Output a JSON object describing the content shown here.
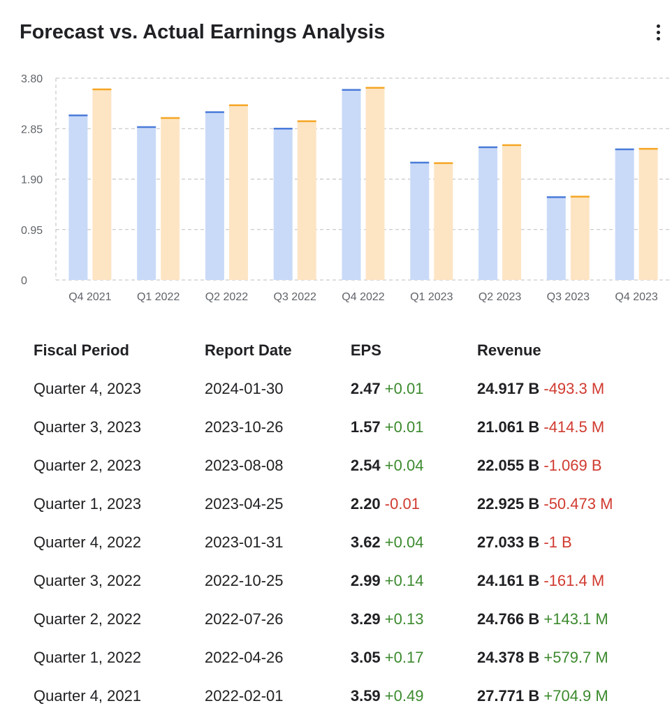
{
  "header": {
    "title": "Forecast vs. Actual Earnings Analysis",
    "menu_icon": "more-vert-icon"
  },
  "colors": {
    "forecast_fill": "#c9daf8",
    "forecast_line": "#4a7bd9",
    "actual_fill": "#fde5c4",
    "actual_line": "#f5a623",
    "grid": "#bdbdbd",
    "positive": "#3c8a2e",
    "negative": "#d03a2f"
  },
  "chart_data": {
    "type": "bar",
    "categories": [
      "Q4 2021",
      "Q1 2022",
      "Q2 2022",
      "Q3 2022",
      "Q4 2022",
      "Q1 2023",
      "Q2 2023",
      "Q3 2023",
      "Q4 2023"
    ],
    "series": [
      {
        "values": [
          3.1,
          2.88,
          3.16,
          2.85,
          3.58,
          2.21,
          2.5,
          1.56,
          2.46
        ]
      },
      {
        "values": [
          3.59,
          3.05,
          3.29,
          2.99,
          3.62,
          2.2,
          2.54,
          1.57,
          2.47
        ]
      }
    ],
    "yticks": [
      "0",
      "0.95",
      "1.90",
      "2.85",
      "3.80"
    ],
    "ylim": [
      0,
      3.8
    ],
    "grid": true
  },
  "table": {
    "headers": {
      "period": "Fiscal Period",
      "date": "Report Date",
      "eps": "EPS",
      "revenue": "Revenue"
    },
    "rows": [
      {
        "period": "Quarter 4, 2023",
        "date": "2024-01-30",
        "eps": "2.47",
        "eps_diff": "+0.01",
        "revenue": "24.917 B",
        "revenue_diff": "-493.3 M"
      },
      {
        "period": "Quarter 3, 2023",
        "date": "2023-10-26",
        "eps": "1.57",
        "eps_diff": "+0.01",
        "revenue": "21.061 B",
        "revenue_diff": "-414.5 M"
      },
      {
        "period": "Quarter 2, 2023",
        "date": "2023-08-08",
        "eps": "2.54",
        "eps_diff": "+0.04",
        "revenue": "22.055 B",
        "revenue_diff": "-1.069 B"
      },
      {
        "period": "Quarter 1, 2023",
        "date": "2023-04-25",
        "eps": "2.20",
        "eps_diff": "-0.01",
        "revenue": "22.925 B",
        "revenue_diff": "-50.473 M"
      },
      {
        "period": "Quarter 4, 2022",
        "date": "2023-01-31",
        "eps": "3.62",
        "eps_diff": "+0.04",
        "revenue": "27.033 B",
        "revenue_diff": "-1 B"
      },
      {
        "period": "Quarter 3, 2022",
        "date": "2022-10-25",
        "eps": "2.99",
        "eps_diff": "+0.14",
        "revenue": "24.161 B",
        "revenue_diff": "-161.4 M"
      },
      {
        "period": "Quarter 2, 2022",
        "date": "2022-07-26",
        "eps": "3.29",
        "eps_diff": "+0.13",
        "revenue": "24.766 B",
        "revenue_diff": "+143.1 M"
      },
      {
        "period": "Quarter 1, 2022",
        "date": "2022-04-26",
        "eps": "3.05",
        "eps_diff": "+0.17",
        "revenue": "24.378 B",
        "revenue_diff": "+579.7 M"
      },
      {
        "period": "Quarter 4, 2021",
        "date": "2022-02-01",
        "eps": "3.59",
        "eps_diff": "+0.49",
        "revenue": "27.771 B",
        "revenue_diff": "+704.9 M"
      }
    ]
  }
}
